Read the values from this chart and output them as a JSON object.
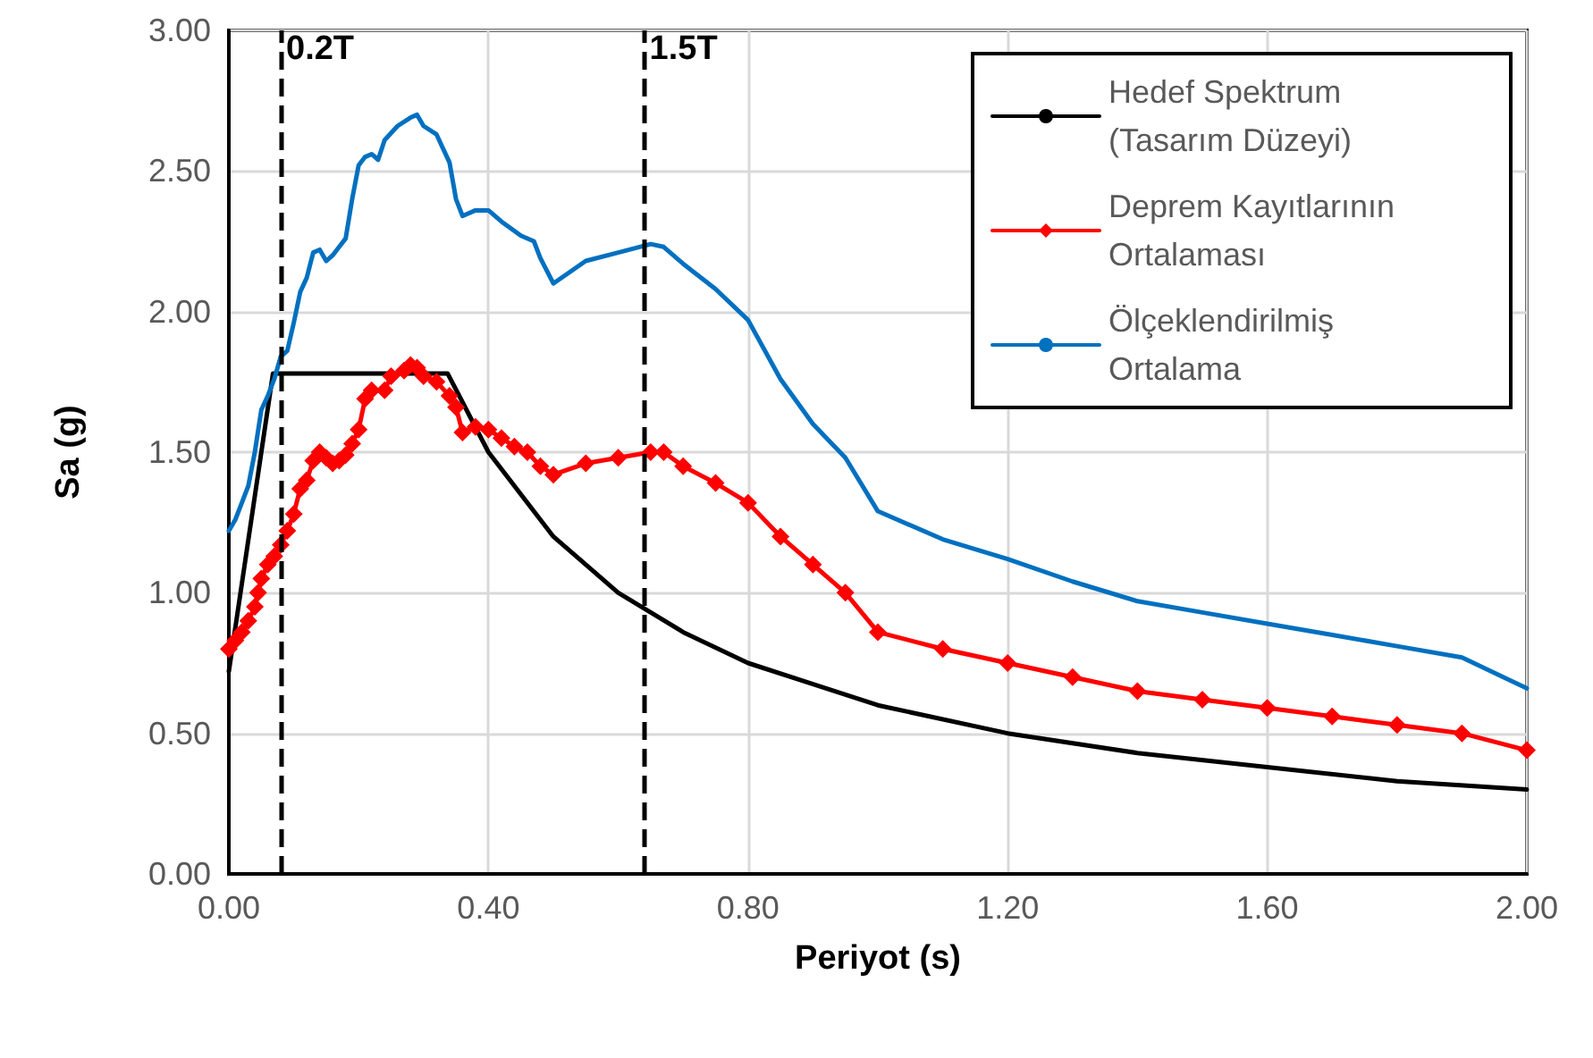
{
  "chart_data": {
    "type": "line",
    "xlabel": "Periyot (s)",
    "ylabel": "Sa (g)",
    "xlim": [
      0,
      2
    ],
    "xticks": [
      {
        "value": 0,
        "label": "0.00"
      },
      {
        "value": 0.4,
        "label": "0.40"
      },
      {
        "value": 0.8,
        "label": "0.80"
      },
      {
        "value": 1.2,
        "label": "1.20"
      },
      {
        "value": 1.6,
        "label": "1.60"
      },
      {
        "value": 2,
        "label": "2.00"
      }
    ],
    "ylim": [
      0,
      3
    ],
    "yticks": [
      {
        "value": 0,
        "label": "0.00"
      },
      {
        "value": 0.5,
        "label": "0.50"
      },
      {
        "value": 1,
        "label": "1.00"
      },
      {
        "value": 1.5,
        "label": "1.50"
      },
      {
        "value": 2,
        "label": "2.00"
      },
      {
        "value": 2.5,
        "label": "2.50"
      },
      {
        "value": 3,
        "label": "3.00"
      }
    ],
    "grid": true,
    "legend": "top right",
    "series": [
      {
        "name": "Hedef Spektrum (Tasarım Düzeyi)",
        "color": "#000000",
        "marker": "none",
        "x": [
          0,
          0.068,
          0.337,
          0.4,
          0.5,
          0.6,
          0.7,
          0.8,
          1.0,
          1.2,
          1.4,
          1.6,
          1.8,
          2.0
        ],
        "values": [
          0.72,
          1.78,
          1.78,
          1.5,
          1.2,
          1.0,
          0.86,
          0.75,
          0.6,
          0.5,
          0.43,
          0.38,
          0.33,
          0.3
        ]
      },
      {
        "name": "Deprem Kayıtlarının Ortalaması",
        "color": "#ff0000",
        "marker": "diamond",
        "x": [
          0,
          0.01,
          0.02,
          0.03,
          0.04,
          0.045,
          0.05,
          0.06,
          0.07,
          0.08,
          0.09,
          0.1,
          0.11,
          0.12,
          0.13,
          0.14,
          0.15,
          0.16,
          0.17,
          0.18,
          0.19,
          0.2,
          0.21,
          0.22,
          0.24,
          0.25,
          0.27,
          0.28,
          0.29,
          0.3,
          0.32,
          0.34,
          0.35,
          0.36,
          0.38,
          0.4,
          0.42,
          0.44,
          0.46,
          0.48,
          0.5,
          0.55,
          0.6,
          0.65,
          0.67,
          0.7,
          0.75,
          0.8,
          0.85,
          0.9,
          0.95,
          1.0,
          1.1,
          1.2,
          1.3,
          1.4,
          1.5,
          1.6,
          1.7,
          1.8,
          1.9,
          2.0
        ],
        "values": [
          0.8,
          0.83,
          0.86,
          0.9,
          0.95,
          1.0,
          1.05,
          1.1,
          1.13,
          1.17,
          1.22,
          1.28,
          1.37,
          1.4,
          1.47,
          1.5,
          1.48,
          1.46,
          1.47,
          1.49,
          1.53,
          1.58,
          1.69,
          1.72,
          1.72,
          1.77,
          1.79,
          1.81,
          1.8,
          1.77,
          1.75,
          1.7,
          1.66,
          1.57,
          1.59,
          1.58,
          1.55,
          1.52,
          1.5,
          1.45,
          1.42,
          1.46,
          1.48,
          1.5,
          1.5,
          1.45,
          1.39,
          1.32,
          1.2,
          1.1,
          1.0,
          0.86,
          0.8,
          0.75,
          0.7,
          0.65,
          0.62,
          0.59,
          0.56,
          0.53,
          0.5,
          0.44
        ]
      },
      {
        "name": "Ölçeklendirilmiş Ortalama",
        "color": "#0070c0",
        "marker": "none",
        "x": [
          0,
          0.01,
          0.02,
          0.03,
          0.04,
          0.05,
          0.06,
          0.07,
          0.08,
          0.09,
          0.1,
          0.11,
          0.12,
          0.13,
          0.14,
          0.15,
          0.16,
          0.17,
          0.18,
          0.19,
          0.2,
          0.21,
          0.22,
          0.23,
          0.24,
          0.26,
          0.28,
          0.29,
          0.3,
          0.32,
          0.34,
          0.35,
          0.36,
          0.38,
          0.4,
          0.42,
          0.45,
          0.47,
          0.48,
          0.5,
          0.55,
          0.6,
          0.65,
          0.67,
          0.7,
          0.75,
          0.8,
          0.85,
          0.9,
          0.95,
          1.0,
          1.1,
          1.2,
          1.3,
          1.4,
          1.5,
          1.6,
          1.7,
          1.8,
          1.9,
          2.0
        ],
        "values": [
          1.22,
          1.26,
          1.32,
          1.38,
          1.5,
          1.65,
          1.7,
          1.76,
          1.84,
          1.86,
          1.96,
          2.07,
          2.12,
          2.21,
          2.22,
          2.18,
          2.2,
          2.23,
          2.26,
          2.4,
          2.52,
          2.55,
          2.56,
          2.54,
          2.61,
          2.66,
          2.69,
          2.7,
          2.66,
          2.63,
          2.53,
          2.4,
          2.34,
          2.36,
          2.36,
          2.32,
          2.27,
          2.25,
          2.19,
          2.1,
          2.18,
          2.21,
          2.24,
          2.23,
          2.17,
          2.08,
          1.97,
          1.76,
          1.6,
          1.48,
          1.29,
          1.19,
          1.12,
          1.04,
          0.97,
          0.93,
          0.89,
          0.85,
          0.81,
          0.77,
          0.66
        ]
      }
    ],
    "ref_lines": [
      {
        "axis": "x",
        "value": 0.084,
        "label": "0.2T",
        "color": "#000000",
        "line_style": "dashed"
      },
      {
        "axis": "x",
        "value": 0.64,
        "label": "1.5T",
        "color": "#000000",
        "line_style": "dashed"
      }
    ]
  }
}
